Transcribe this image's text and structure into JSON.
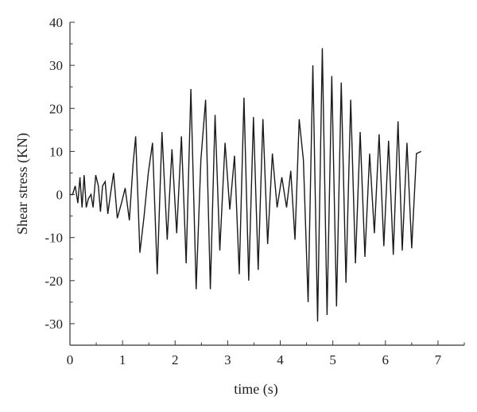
{
  "chart_data": {
    "type": "line",
    "xlabel": "time (s)",
    "ylabel": "Shear stress (KN)",
    "xlim": [
      0,
      7.5
    ],
    "ylim": [
      -35,
      40
    ],
    "xticks": [
      0,
      1,
      2,
      3,
      4,
      5,
      6,
      7
    ],
    "yticks": [
      -30,
      -20,
      -10,
      0,
      10,
      20,
      30,
      40
    ],
    "grid": false,
    "series": [
      {
        "color": "#1a1a1a",
        "x": [
          0,
          0.05,
          0.1,
          0.15,
          0.19,
          0.23,
          0.27,
          0.31,
          0.35,
          0.4,
          0.44,
          0.49,
          0.54,
          0.58,
          0.62,
          0.67,
          0.72,
          0.77,
          0.83,
          0.9,
          0.98,
          1.05,
          1.13,
          1.2,
          1.25,
          1.33,
          1.41,
          1.49,
          1.57,
          1.66,
          1.75,
          1.85,
          1.94,
          2.03,
          2.12,
          2.21,
          2.3,
          2.4,
          2.49,
          2.58,
          2.67,
          2.76,
          2.85,
          2.95,
          3.04,
          3.13,
          3.22,
          3.31,
          3.4,
          3.49,
          3.58,
          3.67,
          3.76,
          3.85,
          3.94,
          4.03,
          4.12,
          4.2,
          4.28,
          4.36,
          4.44,
          4.53,
          4.62,
          4.71,
          4.8,
          4.89,
          4.98,
          5.07,
          5.16,
          5.25,
          5.34,
          5.43,
          5.52,
          5.61,
          5.7,
          5.79,
          5.88,
          5.97,
          6.06,
          6.15,
          6.24,
          6.32,
          6.41,
          6.5,
          6.59,
          6.68
        ],
        "y": [
          0,
          0,
          2,
          -2,
          4,
          -3,
          4.5,
          -3,
          -1,
          0,
          -3,
          4.5,
          2,
          -4,
          2,
          3,
          -4.5,
          0,
          5,
          -5.5,
          -2,
          1.5,
          -6,
          7,
          13.5,
          -13.5,
          -5,
          5,
          12,
          -18.5,
          14.5,
          -10.5,
          10.5,
          -9,
          13.5,
          -16,
          24.5,
          -22,
          8,
          22,
          -22,
          18.5,
          -13,
          12,
          -3.5,
          9,
          -18.5,
          22.5,
          -20,
          18,
          -17.5,
          17.5,
          -11.5,
          9.5,
          -3,
          4,
          -3,
          5.5,
          -10.5,
          17.5,
          8,
          -25,
          30,
          -29.5,
          34,
          -28,
          27.5,
          -26,
          26,
          -20.5,
          22,
          -16,
          14.5,
          -14.5,
          9.5,
          -9,
          14,
          -12,
          12.5,
          -14,
          17,
          -13,
          12,
          -12.5,
          9.5,
          10
        ]
      }
    ]
  }
}
